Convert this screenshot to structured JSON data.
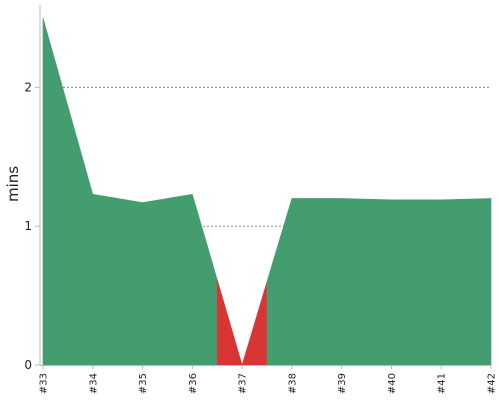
{
  "chart_data": {
    "type": "area",
    "title": "",
    "xlabel": "",
    "ylabel": "mins",
    "categories": [
      "#33",
      "#34",
      "#35",
      "#36",
      "#37",
      "#38",
      "#39",
      "#40",
      "#41",
      "#42"
    ],
    "values": [
      2.5,
      1.23,
      1.17,
      1.23,
      0.0,
      1.2,
      1.2,
      1.19,
      1.19,
      1.2
    ],
    "status": [
      "success",
      "success",
      "success",
      "success",
      "failure",
      "success",
      "success",
      "success",
      "success",
      "success"
    ],
    "ylim": [
      0,
      2.5
    ],
    "yticks": [
      0,
      1,
      2
    ],
    "grid": {
      "horizontal": true,
      "style": "dotted",
      "color": "#888888"
    },
    "colors": {
      "success": "#449d6e",
      "failure": "#d93535",
      "axis": "#bbbbbb",
      "text": "#222222"
    }
  }
}
